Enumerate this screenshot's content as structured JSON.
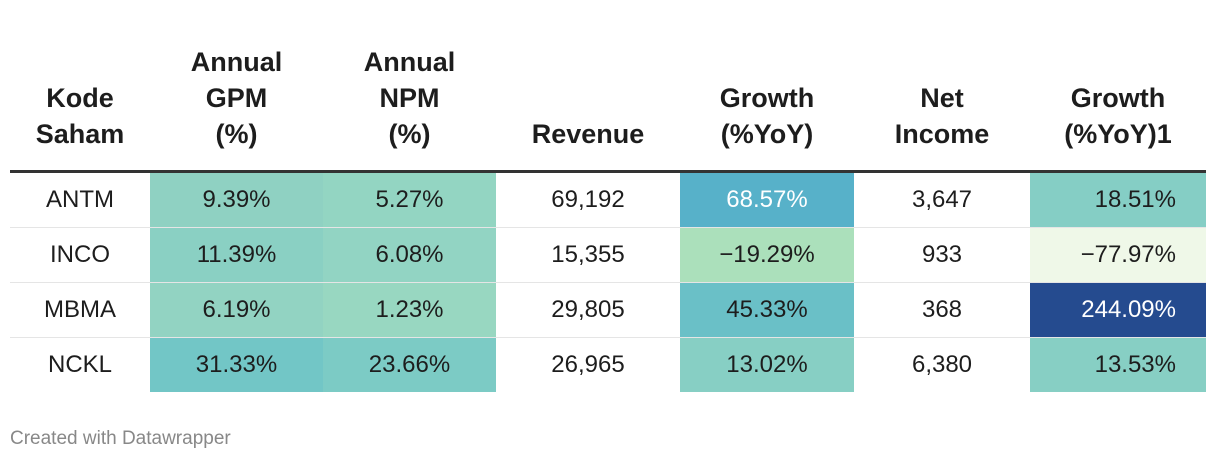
{
  "chart_data": {
    "type": "table",
    "columns": [
      {
        "key": "kode",
        "lines": [
          "Kode",
          "Saham"
        ]
      },
      {
        "key": "gpm",
        "lines": [
          "Annual",
          "GPM",
          "(%)"
        ]
      },
      {
        "key": "npm",
        "lines": [
          "Annual",
          "NPM",
          "(%)"
        ]
      },
      {
        "key": "revenue",
        "lines": [
          "Revenue"
        ]
      },
      {
        "key": "growth",
        "lines": [
          "Growth",
          "(%YoY)"
        ]
      },
      {
        "key": "net_income",
        "lines": [
          "Net",
          "Income"
        ]
      },
      {
        "key": "growth1",
        "lines": [
          "Growth",
          "(%YoY)1"
        ]
      }
    ],
    "rows": [
      {
        "kode": {
          "text": "ANTM"
        },
        "gpm": {
          "text": "9.39%",
          "value": 9.39,
          "bg": "#8fd1c2"
        },
        "npm": {
          "text": "5.27%",
          "value": 5.27,
          "bg": "#93d5c2"
        },
        "revenue": {
          "text": "69,192",
          "value": 69192
        },
        "growth": {
          "text": "68.57%",
          "value": 68.57,
          "bg": "#57b1c9",
          "fg": "#ffffff"
        },
        "net_income": {
          "text": "3,647",
          "value": 3647
        },
        "growth1": {
          "text": "18.51%",
          "value": 18.51,
          "bg": "#85cec5"
        }
      },
      {
        "kode": {
          "text": "INCO"
        },
        "gpm": {
          "text": "11.39%",
          "value": 11.39,
          "bg": "#8ad0c3"
        },
        "npm": {
          "text": "6.08%",
          "value": 6.08,
          "bg": "#92d4c3"
        },
        "revenue": {
          "text": "15,355",
          "value": 15355
        },
        "growth": {
          "text": "−19.29%",
          "value": -19.29,
          "bg": "#abe0bb"
        },
        "net_income": {
          "text": "933",
          "value": 933
        },
        "growth1": {
          "text": "−77.97%",
          "value": -77.97,
          "bg": "#eff8e8"
        }
      },
      {
        "kode": {
          "text": "MBMA"
        },
        "gpm": {
          "text": "6.19%",
          "value": 6.19,
          "bg": "#92d3c2"
        },
        "npm": {
          "text": "1.23%",
          "value": 1.23,
          "bg": "#98d7c1"
        },
        "revenue": {
          "text": "29,805",
          "value": 29805
        },
        "growth": {
          "text": "45.33%",
          "value": 45.33,
          "bg": "#6ac0c7"
        },
        "net_income": {
          "text": "368",
          "value": 368
        },
        "growth1": {
          "text": "244.09%",
          "value": 244.09,
          "bg": "#254b8f",
          "fg": "#ffffff"
        }
      },
      {
        "kode": {
          "text": "NCKL"
        },
        "gpm": {
          "text": "31.33%",
          "value": 31.33,
          "bg": "#72c6c6"
        },
        "npm": {
          "text": "23.66%",
          "value": 23.66,
          "bg": "#7ccbc5"
        },
        "revenue": {
          "text": "26,965",
          "value": 26965
        },
        "growth": {
          "text": "13.02%",
          "value": 13.02,
          "bg": "#87cfc4"
        },
        "net_income": {
          "text": "6,380",
          "value": 6380
        },
        "growth1": {
          "text": "13.53%",
          "value": 13.53,
          "bg": "#87cfc4"
        }
      }
    ]
  },
  "footer": {
    "credit": "Created with Datawrapper"
  }
}
